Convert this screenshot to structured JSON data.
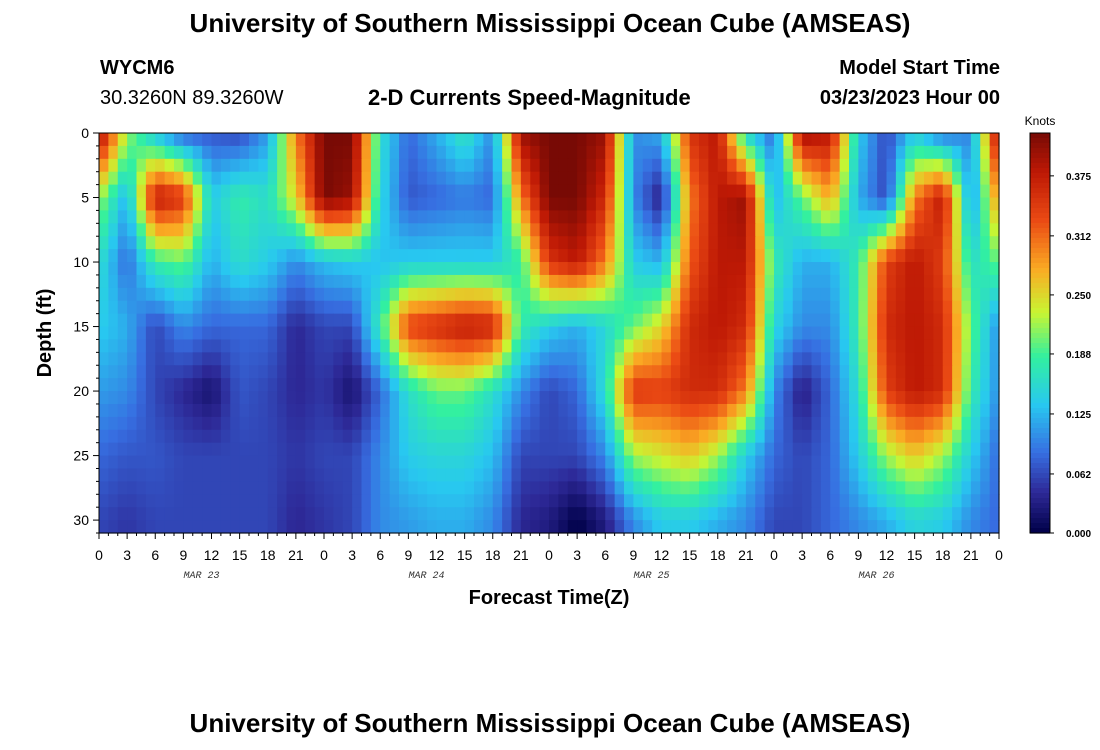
{
  "header": {
    "title": "University of Southern Mississippi Ocean Cube (AMSEAS)",
    "station_id": "WYCM6",
    "station_coords": "30.3260N  89.3260W",
    "chart_title": "2-D Currents Speed-Magnitude",
    "model_start_label": "Model Start Time",
    "model_start_value": "03/23/2023 Hour 00"
  },
  "footer": {
    "title": "University of Southern Mississippi Ocean Cube (AMSEAS)"
  },
  "chart_data": {
    "type": "heatmap",
    "title": "2-D Currents Speed-Magnitude",
    "xlabel": "Forecast Time(Z)",
    "ylabel": "Depth (ft)",
    "x_tick_labels": [
      "0",
      "3",
      "6",
      "9",
      "12",
      "15",
      "18",
      "21",
      "0",
      "3",
      "6",
      "9",
      "12",
      "15",
      "18",
      "21",
      "0",
      "3",
      "6",
      "9",
      "12",
      "15",
      "18",
      "21",
      "0",
      "3",
      "6",
      "9",
      "12",
      "15",
      "18",
      "21",
      "0"
    ],
    "date_labels": [
      "MAR 23",
      "MAR 24",
      "MAR 25",
      "MAR 26"
    ],
    "y_ticks": [
      0,
      5,
      10,
      15,
      20,
      25,
      30
    ],
    "ylim": [
      0,
      31
    ],
    "xlim_hours": [
      0,
      96
    ],
    "colorbar": {
      "title": "Knots",
      "tick_labels": [
        "0.000",
        "0.062",
        "0.125",
        "0.188",
        "0.250",
        "0.312",
        "0.375"
      ],
      "range": [
        0,
        0.42
      ]
    },
    "grid": false,
    "colormap": "jet",
    "depths": [
      0,
      5,
      10,
      15,
      20,
      25,
      30
    ],
    "hours": [
      0,
      3,
      6,
      9,
      12,
      15,
      18,
      21,
      24,
      27,
      30,
      33,
      36,
      39,
      42,
      45,
      48,
      51,
      54,
      57,
      60,
      63,
      66,
      69,
      72,
      75,
      78,
      81,
      84,
      87,
      90,
      93,
      96
    ],
    "values": [
      [
        0.4,
        0.22,
        0.13,
        0.07,
        0.07,
        0.06,
        0.11,
        0.3,
        0.42,
        0.42,
        0.16,
        0.08,
        0.12,
        0.17,
        0.1,
        0.4,
        0.42,
        0.42,
        0.4,
        0.1,
        0.12,
        0.35,
        0.38,
        0.15,
        0.08,
        0.4,
        0.38,
        0.14,
        0.06,
        0.14,
        0.08,
        0.1,
        0.4
      ],
      [
        0.22,
        0.12,
        0.38,
        0.35,
        0.14,
        0.18,
        0.16,
        0.25,
        0.42,
        0.4,
        0.15,
        0.07,
        0.08,
        0.09,
        0.08,
        0.3,
        0.42,
        0.42,
        0.36,
        0.1,
        0.03,
        0.3,
        0.38,
        0.4,
        0.12,
        0.2,
        0.28,
        0.12,
        0.06,
        0.3,
        0.38,
        0.1,
        0.3
      ],
      [
        0.16,
        0.08,
        0.18,
        0.2,
        0.12,
        0.16,
        0.14,
        0.1,
        0.13,
        0.14,
        0.13,
        0.14,
        0.14,
        0.14,
        0.14,
        0.18,
        0.35,
        0.38,
        0.3,
        0.14,
        0.12,
        0.32,
        0.38,
        0.38,
        0.18,
        0.12,
        0.12,
        0.18,
        0.34,
        0.38,
        0.34,
        0.16,
        0.2
      ],
      [
        0.14,
        0.12,
        0.06,
        0.1,
        0.08,
        0.08,
        0.08,
        0.04,
        0.06,
        0.06,
        0.18,
        0.34,
        0.36,
        0.38,
        0.37,
        0.18,
        0.14,
        0.12,
        0.15,
        0.2,
        0.25,
        0.36,
        0.38,
        0.36,
        0.15,
        0.1,
        0.1,
        0.18,
        0.36,
        0.38,
        0.36,
        0.2,
        0.1
      ],
      [
        0.11,
        0.1,
        0.06,
        0.04,
        0.02,
        0.07,
        0.06,
        0.04,
        0.05,
        0.02,
        0.08,
        0.16,
        0.2,
        0.2,
        0.16,
        0.1,
        0.06,
        0.08,
        0.16,
        0.35,
        0.34,
        0.36,
        0.36,
        0.3,
        0.1,
        0.03,
        0.08,
        0.16,
        0.34,
        0.38,
        0.36,
        0.18,
        0.1
      ],
      [
        0.08,
        0.07,
        0.07,
        0.06,
        0.06,
        0.06,
        0.06,
        0.05,
        0.06,
        0.06,
        0.1,
        0.14,
        0.15,
        0.15,
        0.13,
        0.06,
        0.06,
        0.06,
        0.1,
        0.22,
        0.24,
        0.26,
        0.22,
        0.14,
        0.08,
        0.06,
        0.08,
        0.14,
        0.22,
        0.26,
        0.22,
        0.14,
        0.08
      ],
      [
        0.06,
        0.05,
        0.06,
        0.06,
        0.06,
        0.06,
        0.06,
        0.04,
        0.05,
        0.06,
        0.1,
        0.11,
        0.12,
        0.12,
        0.1,
        0.04,
        0.03,
        0.0,
        0.03,
        0.1,
        0.14,
        0.14,
        0.12,
        0.1,
        0.06,
        0.06,
        0.08,
        0.1,
        0.12,
        0.15,
        0.14,
        0.1,
        0.08
      ]
    ]
  }
}
